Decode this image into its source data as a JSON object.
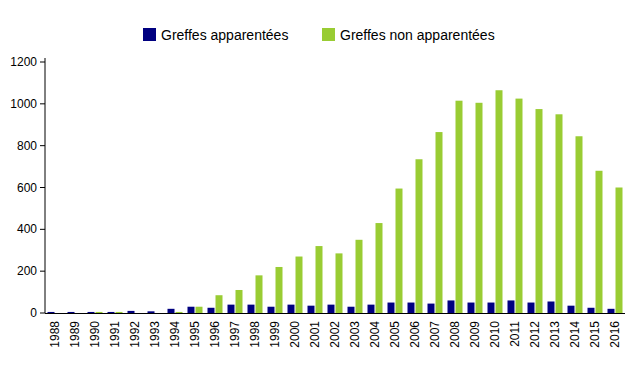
{
  "chart_data": {
    "type": "bar",
    "categories": [
      "1988",
      "1989",
      "1990",
      "1991",
      "1992",
      "1993",
      "1994",
      "1995",
      "1996",
      "1997",
      "1998",
      "1999",
      "2000",
      "2001",
      "2002",
      "2003",
      "2004",
      "2005",
      "2006",
      "2007",
      "2008",
      "2009",
      "2010",
      "2011",
      "2012",
      "2013",
      "2014",
      "2015",
      "2016"
    ],
    "series": [
      {
        "name": "Greffes apparentées",
        "color": "#000080",
        "values": [
          5,
          5,
          5,
          5,
          10,
          8,
          20,
          30,
          25,
          40,
          40,
          30,
          40,
          35,
          40,
          30,
          40,
          50,
          50,
          45,
          60,
          50,
          50,
          60,
          50,
          55,
          35,
          25,
          20
        ]
      },
      {
        "name": "Greffes non apparentées",
        "color": "#99cc33",
        "values": [
          0,
          0,
          5,
          5,
          0,
          0,
          5,
          30,
          85,
          110,
          180,
          220,
          270,
          320,
          285,
          350,
          430,
          595,
          735,
          865,
          1015,
          1005,
          1065,
          1025,
          975,
          950,
          845,
          680,
          600
        ]
      }
    ],
    "ylim": [
      0,
      1200
    ],
    "yticks": [
      0,
      200,
      400,
      600,
      800,
      1000,
      1200
    ],
    "grid": false,
    "legend": "top"
  }
}
